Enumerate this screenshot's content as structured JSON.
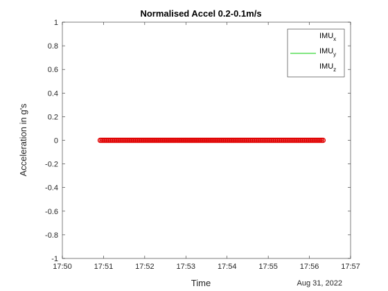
{
  "chart_data": {
    "type": "line",
    "title": "Normalised Accel 0.2-0.1m/s",
    "xlabel": "Time",
    "ylabel": "Acceleration in g's",
    "date_label": "Aug 31, 2022",
    "x_ticks": [
      "17:50",
      "17:51",
      "17:52",
      "17:53",
      "17:54",
      "17:55",
      "17:56",
      "17:57"
    ],
    "y_ticks": [
      "1",
      "0.8",
      "0.6",
      "0.4",
      "0.2",
      "0",
      "-0.2",
      "-0.4",
      "-0.6",
      "-0.8",
      "-1"
    ],
    "xlim": [
      "17:50",
      "17:57"
    ],
    "ylim": [
      -1,
      1
    ],
    "grid": false,
    "legend_position": "top-right",
    "series": [
      {
        "name": "IMU",
        "subscript": "x",
        "color": "#0072BD",
        "x": [
          "17:50:55",
          "17:56:20"
        ],
        "values": [
          0,
          0
        ]
      },
      {
        "name": "IMU",
        "subscript": "y",
        "color": "#00CC00",
        "x": [
          "17:50:55",
          "17:56:20"
        ],
        "values": [
          0,
          0
        ]
      },
      {
        "name": "IMU",
        "subscript": "z",
        "color": "#E00000",
        "marker": "circle",
        "x": [
          "17:50:55",
          "17:56:20"
        ],
        "values": [
          0,
          0
        ]
      }
    ]
  }
}
